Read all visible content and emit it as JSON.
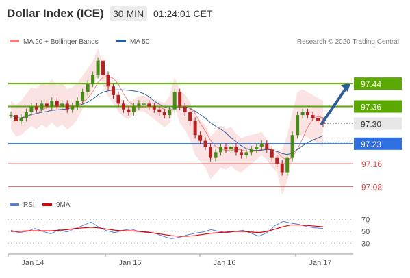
{
  "header": {
    "title": "Dollar Index (ICE)",
    "timeframe": "30 MIN",
    "clock": "01:24:01 CET"
  },
  "legend": {
    "items": [
      {
        "label": "MA 20 + Bollinger Bands",
        "color": "#f08080"
      },
      {
        "label": "MA 50",
        "color": "#2f5d9a"
      }
    ],
    "credit": "Research © 2020 Trading Central"
  },
  "rsi_legend": {
    "items": [
      {
        "label": "RSI",
        "color": "#5b7fd6"
      },
      {
        "label": "9MA",
        "color": "#e00000"
      }
    ]
  },
  "colors": {
    "resistance": "#5aa800",
    "pivot": "#2f6fe0",
    "support": "#e04040",
    "last": "#333333",
    "arrow": "#2f5d9a",
    "band": "#fbd9d9"
  },
  "chart_data": {
    "type": "candlestick",
    "x_labels": [
      "Jan 14",
      "Jan 15",
      "Jan 16",
      "Jan 17"
    ],
    "y_range": [
      97.05,
      97.56
    ],
    "levels": [
      {
        "value": 97.44,
        "label": "97.44",
        "kind": "resistance"
      },
      {
        "value": 97.36,
        "label": "97.36",
        "kind": "resistance"
      },
      {
        "value": 97.3,
        "label": "97.30",
        "kind": "last"
      },
      {
        "value": 97.23,
        "label": "97.23",
        "kind": "pivot"
      },
      {
        "value": 97.16,
        "label": "97.16",
        "kind": "support"
      },
      {
        "value": 97.08,
        "label": "97.08",
        "kind": "support"
      }
    ],
    "close_series": [
      97.33,
      97.31,
      97.32,
      97.34,
      97.36,
      97.35,
      97.37,
      97.36,
      97.38,
      97.36,
      97.37,
      97.35,
      97.36,
      97.38,
      97.41,
      97.44,
      97.47,
      97.52,
      97.47,
      97.43,
      97.4,
      97.37,
      97.35,
      97.34,
      97.36,
      97.37,
      97.37,
      97.36,
      97.35,
      97.34,
      97.33,
      97.35,
      97.41,
      97.36,
      97.34,
      97.31,
      97.26,
      97.24,
      97.22,
      97.18,
      97.2,
      97.22,
      97.21,
      97.22,
      97.2,
      97.19,
      97.2,
      97.21,
      97.22,
      97.23,
      97.21,
      97.18,
      97.16,
      97.13,
      97.18,
      97.26,
      97.33,
      97.34,
      97.33,
      97.32,
      97.31,
      97.3
    ],
    "forecast": {
      "from": 97.3,
      "to": 97.44
    },
    "rsi": {
      "ticks": [
        70,
        50,
        30
      ],
      "values": [
        52,
        48,
        50,
        55,
        50,
        46,
        53,
        49,
        55,
        60,
        66,
        57,
        51,
        48,
        52,
        54,
        50,
        48,
        47,
        42,
        38,
        40,
        44,
        47,
        49,
        53,
        50,
        48,
        50,
        52,
        47,
        42,
        48,
        60,
        67,
        64,
        62,
        58,
        56,
        55
      ],
      "ma9": [
        50,
        50,
        51,
        51,
        51,
        51,
        52,
        53,
        55,
        56,
        57,
        56,
        54,
        52,
        51,
        51,
        50,
        49,
        47,
        45,
        43,
        42,
        42,
        43,
        45,
        47,
        48,
        49,
        50,
        50,
        49,
        48,
        50,
        54,
        58,
        61,
        61,
        60,
        59,
        58
      ]
    }
  }
}
